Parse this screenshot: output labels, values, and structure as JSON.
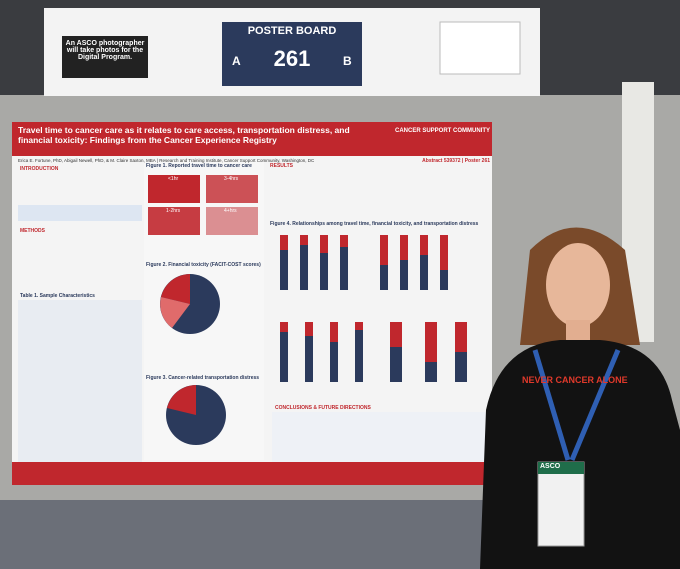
{
  "sign": {
    "note": "An ASCO photographer will take photos for the Digital Program.",
    "title": "POSTER BOARD",
    "left": "A",
    "number": "261",
    "right": "B"
  },
  "poster": {
    "title": "Travel time to cancer care as it relates to care access, transportation distress, and financial toxicity: Findings from the Cancer Experience Registry",
    "authors": "Erica E. Fortune, PhD, Abigail Newell, PhD, & M. Claire Saxton, MBA | Research and Training Institute, Cancer Support Community, Washington, DC",
    "org": "CANCER SUPPORT COMMUNITY",
    "abstract": "Abstract 539372 | Poster 261",
    "left_headings": [
      "INTRODUCTION",
      "METHODS",
      "Table 1. Sample Characteristics"
    ],
    "figure1": {
      "title": "Figure 1. Reported travel time to cancer care",
      "tiles": [
        "<1hr",
        "3-4hrs",
        "1-2hrs",
        "4+hrs"
      ]
    },
    "figure2": "Figure 2. Financial toxicity (FACIT-COST scores)",
    "figure3": "Figure 3. Cancer-related transportation distress",
    "results": "RESULTS",
    "figure4": "Figure 4. Relationships among travel time, financial toxicity, and transportation distress",
    "conclusions": "CONCLUSIONS & FUTURE DIRECTIONS"
  },
  "shirt": "NEVER CANCER ALONE",
  "badge": "ASCO"
}
